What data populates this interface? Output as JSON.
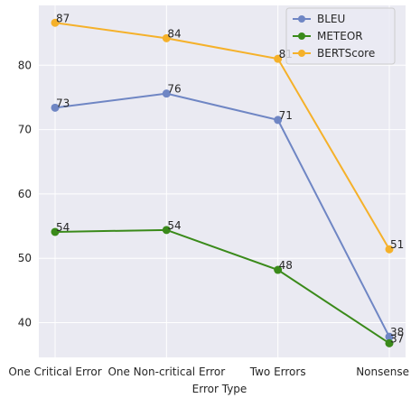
{
  "chart_data": {
    "type": "line",
    "title": "",
    "xlabel": "Error Type",
    "ylabel": "",
    "categories": [
      "One Critical Error",
      "One Non-critical Error",
      "Two Errors",
      "Nonsense"
    ],
    "ylim": [
      34.6,
      89.3
    ],
    "yticks": [
      40,
      50,
      60,
      70,
      80
    ],
    "grid": true,
    "background": "#eaeaf2",
    "legend_position": "top-right",
    "series": [
      {
        "name": "BLEU",
        "values": [
          73.4,
          75.6,
          71.5,
          37.8
        ],
        "labels": [
          "73",
          "76",
          "71",
          "38"
        ],
        "color": "#6f86c4"
      },
      {
        "name": "METEOR",
        "values": [
          54.1,
          54.4,
          48.2,
          36.8
        ],
        "labels": [
          "54",
          "54",
          "48",
          "37"
        ],
        "color": "#3a8a1a"
      },
      {
        "name": "BERTScore",
        "values": [
          86.6,
          84.2,
          81.0,
          51.4
        ],
        "labels": [
          "87",
          "84",
          "81",
          "51"
        ],
        "color": "#f5b12a"
      }
    ]
  }
}
